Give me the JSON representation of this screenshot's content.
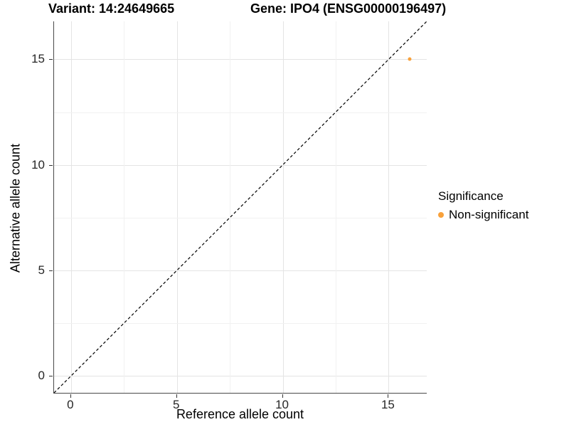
{
  "title": {
    "variant": "Variant: 14:24649665",
    "gene": "Gene: IPO4 (ENSG00000196497)"
  },
  "chart_data": {
    "type": "scatter",
    "title": "Variant: 14:24649665   Gene: IPO4 (ENSG00000196497)",
    "xlabel": "Reference allele count",
    "ylabel": "Alternative allele count",
    "xlim": [
      -0.8,
      16.8
    ],
    "ylim": [
      -0.8,
      16.8
    ],
    "x_ticks": [
      0,
      5,
      10,
      15
    ],
    "y_ticks": [
      0,
      5,
      10,
      15
    ],
    "x_minor_ticks": [
      2.5,
      7.5,
      12.5
    ],
    "y_minor_ticks": [
      2.5,
      7.5,
      12.5
    ],
    "grid": true,
    "points": [
      {
        "x": 16,
        "y": 15,
        "series": "Non-significant",
        "color": "#F8A13B"
      }
    ],
    "identity_line": {
      "style": "dashed",
      "color": "#000000",
      "from": [
        -0.8,
        -0.8
      ],
      "to": [
        16.8,
        16.8
      ]
    },
    "legend": {
      "position": "right",
      "title": "Significance",
      "entries": [
        {
          "label": "Non-significant",
          "color": "#F8A13B"
        }
      ]
    }
  },
  "colors": {
    "point": "#F8A13B",
    "grid_major": "#e4e4e4",
    "grid_minor": "#f1f1f1",
    "axis_line": "#4a4a4a",
    "text": "#000000"
  }
}
